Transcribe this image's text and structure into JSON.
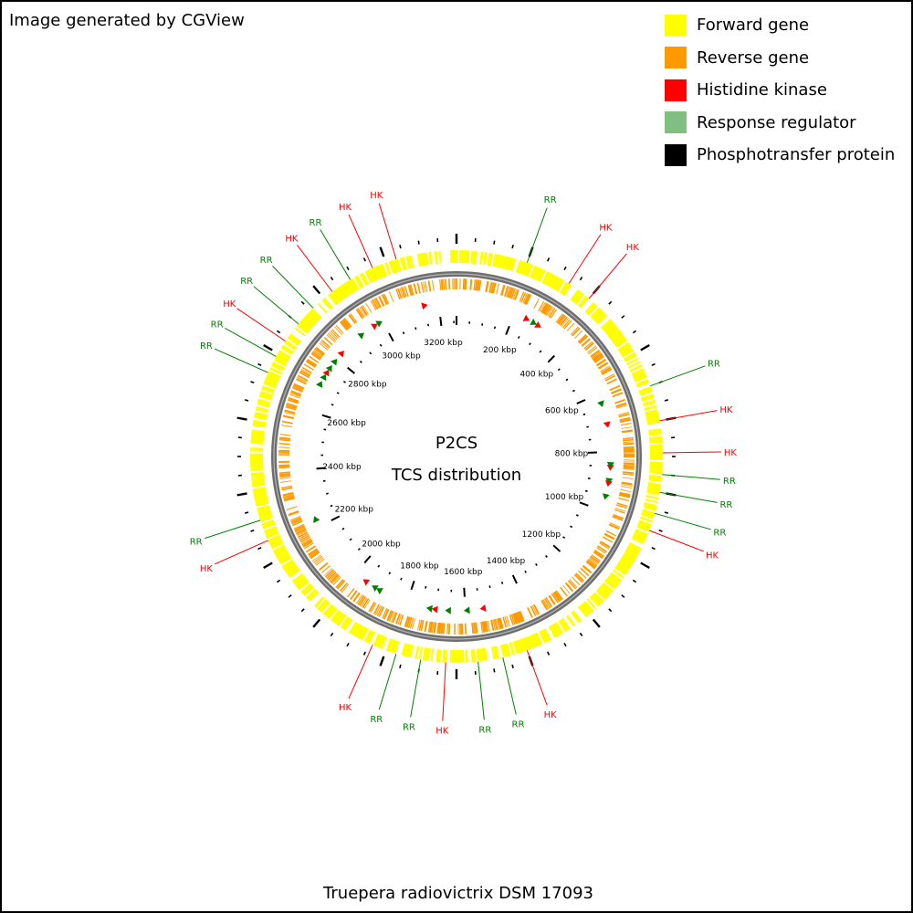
{
  "header": {
    "credit": "Image generated by CGView"
  },
  "legend": [
    {
      "label": "Forward gene",
      "color": "#ffff00"
    },
    {
      "label": "Reverse gene",
      "color": "#ff9900"
    },
    {
      "label": "Histidine kinase",
      "color": "#ff0000"
    },
    {
      "label": "Response regulator",
      "color": "#7fbf7f"
    },
    {
      "label": "Phosphotransfer protein",
      "color": "#000000"
    }
  ],
  "center": {
    "line1": "P2CS",
    "line2": "TCS distribution"
  },
  "footer": {
    "organism": "Truepera radiovictrix DSM 17093"
  },
  "genome": {
    "length_kbp": 3260,
    "ticks": [
      "200 kbp",
      "400 kbp",
      "600 kbp",
      "800 kbp",
      "1000 kbp",
      "1200 kbp",
      "1400 kbp",
      "1600 kbp",
      "1800 kbp",
      "2000 kbp",
      "2200 kbp",
      "2400 kbp",
      "2600 kbp",
      "2800 kbp",
      "3000 kbp",
      "3200 kbp"
    ]
  },
  "label_colors": {
    "HK": "#ff0000",
    "RR": "#008000"
  },
  "features": [
    {
      "label": "HK",
      "angle": -17
    },
    {
      "label": "HK",
      "angle": -24
    },
    {
      "label": "RR",
      "angle": -31
    },
    {
      "label": "HK",
      "angle": -37
    },
    {
      "label": "RR",
      "angle": -44
    },
    {
      "label": "RR",
      "angle": -50
    },
    {
      "label": "HK",
      "angle": -56
    },
    {
      "label": "RR",
      "angle": -61
    },
    {
      "label": "RR",
      "angle": -66
    },
    {
      "label": "RR",
      "angle": 20
    },
    {
      "label": "HK",
      "angle": 33
    },
    {
      "label": "HK",
      "angle": 40
    },
    {
      "label": "RR",
      "angle": 70
    },
    {
      "label": "HK",
      "angle": 80
    },
    {
      "label": "HK",
      "angle": 89
    },
    {
      "label": "RR",
      "angle": 95
    },
    {
      "label": "RR",
      "angle": 100
    },
    {
      "label": "RR",
      "angle": 106
    },
    {
      "label": "HK",
      "angle": 111
    },
    {
      "label": "HK",
      "angle": 160
    },
    {
      "label": "RR",
      "angle": 167
    },
    {
      "label": "RR",
      "angle": 174
    },
    {
      "label": "HK",
      "angle": 183
    },
    {
      "label": "RR",
      "angle": 190
    },
    {
      "label": "RR",
      "angle": 197
    },
    {
      "label": "HK",
      "angle": 204
    },
    {
      "label": "HK",
      "angle": 246
    },
    {
      "label": "RR",
      "angle": 252
    }
  ],
  "markers": [
    {
      "type": "HK",
      "angle": -12
    },
    {
      "type": "RR",
      "angle": -30
    },
    {
      "type": "RR",
      "angle": -38
    },
    {
      "type": "HK",
      "angle": -32
    },
    {
      "type": "HK",
      "angle": -48
    },
    {
      "type": "RR",
      "angle": -52
    },
    {
      "type": "HK",
      "angle": -57
    },
    {
      "type": "RR",
      "angle": -55
    },
    {
      "type": "RR",
      "angle": -59
    },
    {
      "type": "RR",
      "angle": -62
    },
    {
      "type": "HK",
      "angle": 27
    },
    {
      "type": "HK",
      "angle": 32
    },
    {
      "type": "RR",
      "angle": 30
    },
    {
      "type": "RR",
      "angle": 70
    },
    {
      "type": "HK",
      "angle": 78
    },
    {
      "type": "HK",
      "angle": 94
    },
    {
      "type": "RR",
      "angle": 93
    },
    {
      "type": "RR",
      "angle": 99
    },
    {
      "type": "RR",
      "angle": 105
    },
    {
      "type": "HK",
      "angle": 100
    },
    {
      "type": "HK",
      "angle": 170
    },
    {
      "type": "RR",
      "angle": 176
    },
    {
      "type": "RR",
      "angle": 183
    },
    {
      "type": "HK",
      "angle": 188
    },
    {
      "type": "RR",
      "angle": 190
    },
    {
      "type": "RR",
      "angle": 210
    },
    {
      "type": "HK",
      "angle": 216
    },
    {
      "type": "RR",
      "angle": 212
    },
    {
      "type": "RR",
      "angle": 246
    }
  ]
}
